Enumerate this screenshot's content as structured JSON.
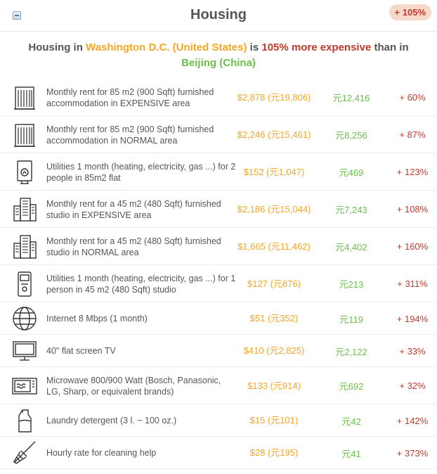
{
  "header": {
    "title": "Housing",
    "badge": "+ 105%",
    "summary": {
      "pre": "Housing in ",
      "city1": "Washington D.C. (United States)",
      "mid": " is ",
      "pct": "105% more expensive",
      "than": " than in",
      "city2": "Beijing (China)"
    }
  },
  "rows": [
    {
      "icon": "apartment-building-icon",
      "label": "Monthly rent for 85 m2 (900 Sqft) furnished accommodation in EXPENSIVE area",
      "price1": "$2,878 (元19,806)",
      "price2": "元12,416",
      "diff": "+ 60%"
    },
    {
      "icon": "apartment-building-icon",
      "label": "Monthly rent for 85 m2 (900 Sqft) furnished accommodation in NORMAL area",
      "price1": "$2,246 (元15,461)",
      "price2": "元8,256",
      "diff": "+ 87%"
    },
    {
      "icon": "boiler-icon",
      "label": "Utilities 1 month (heating, electricity, gas ...) for 2 people in 85m2 flat",
      "price1": "$152 (元1,047)",
      "price2": "元469",
      "diff": "+ 123%"
    },
    {
      "icon": "city-buildings-icon",
      "label": "Monthly rent for a 45 m2 (480 Sqft) furnished studio in EXPENSIVE area",
      "price1": "$2,186 (元15,044)",
      "price2": "元7,243",
      "diff": "+ 108%"
    },
    {
      "icon": "city-buildings-icon",
      "label": "Monthly rent for a 45 m2 (480 Sqft) furnished studio in NORMAL area",
      "price1": "$1,665 (元11,462)",
      "price2": "元4,402",
      "diff": "+ 160%"
    },
    {
      "icon": "meter-icon",
      "label": "Utilities 1 month (heating, electricity, gas ...) for 1 person in 45 m2 (480 Sqft) studio",
      "price1": "$127 (元876)",
      "price2": "元213",
      "diff": "+ 311%"
    },
    {
      "icon": "globe-icon",
      "label": "Internet 8 Mbps (1 month)",
      "price1": "$51 (元352)",
      "price2": "元119",
      "diff": "+ 194%"
    },
    {
      "icon": "tv-icon",
      "label": "40\" flat screen TV",
      "price1": "$410 (元2,825)",
      "price2": "元2,122",
      "diff": "+ 33%"
    },
    {
      "icon": "microwave-icon",
      "label": "Microwave 800/900 Watt (Bosch, Panasonic, LG, Sharp, or equivalent brands)",
      "price1": "$133 (元914)",
      "price2": "元692",
      "diff": "+ 32%"
    },
    {
      "icon": "detergent-bottle-icon",
      "label": "Laundry detergent (3 l. ~ 100 oz.)",
      "price1": "$15 (元101)",
      "price2": "元42",
      "diff": "+ 142%"
    },
    {
      "icon": "broom-icon",
      "label": "Hourly rate for cleaning help",
      "price1": "$28 (元195)",
      "price2": "元41",
      "diff": "+ 373%"
    }
  ]
}
